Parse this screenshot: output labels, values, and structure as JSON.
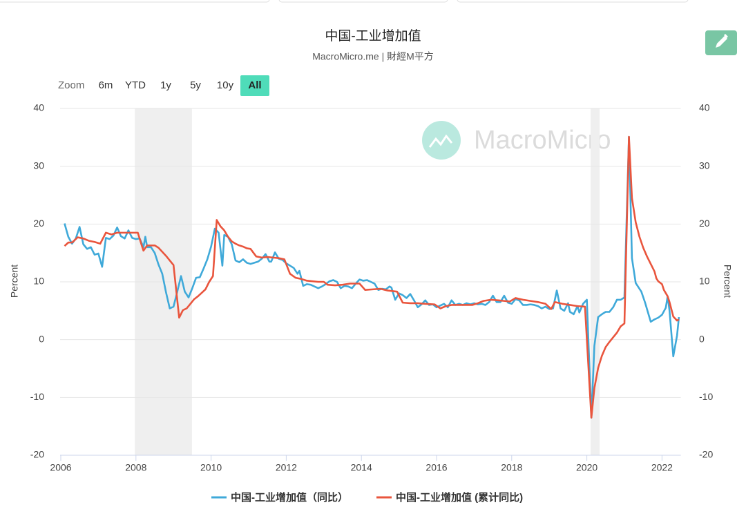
{
  "chart_data": {
    "type": "line",
    "title": "中国-工业增加值",
    "subtitle": "MacroMicro.me | 財經M平方",
    "watermark": "MacroMicro",
    "range_selector": {
      "label": "Zoom",
      "buttons": [
        "6m",
        "YTD",
        "1y",
        "5y",
        "10y",
        "All"
      ]
    },
    "y_label": "Percent",
    "y2_label": "Percent",
    "xlim": [
      2006,
      2022.5
    ],
    "xticks": [
      2006,
      2008,
      2010,
      2012,
      2014,
      2016,
      2018,
      2020,
      2022
    ],
    "ylim": [
      -20,
      40
    ],
    "yticks": [
      -20,
      -10,
      0,
      10,
      20,
      30,
      40
    ],
    "y2lim": [
      -20,
      40
    ],
    "y2ticks": [
      -20,
      -10,
      0,
      10,
      20,
      30,
      40
    ],
    "grid": true,
    "shaded_bands": [
      [
        2007.97,
        2009.49
      ],
      [
        2020.1,
        2020.34
      ]
    ],
    "series": [
      {
        "name": "中国-工业增加值（同比）",
        "color": "#3fa9d9",
        "x": [
          2006.1,
          2006.2,
          2006.3,
          2006.4,
          2006.5,
          2006.6,
          2006.7,
          2006.8,
          2006.9,
          2007.0,
          2007.1,
          2007.2,
          2007.3,
          2007.4,
          2007.5,
          2007.6,
          2007.7,
          2007.8,
          2007.9,
          2008.0,
          2008.1,
          2008.2,
          2008.25,
          2008.3,
          2008.4,
          2008.5,
          2008.6,
          2008.7,
          2008.8,
          2008.9,
          2009.0,
          2009.1,
          2009.2,
          2009.3,
          2009.4,
          2009.5,
          2009.6,
          2009.7,
          2009.8,
          2009.9,
          2010.0,
          2010.1,
          2010.2,
          2010.3,
          2010.35,
          2010.45,
          2010.55,
          2010.65,
          2010.75,
          2010.85,
          2010.95,
          2011.05,
          2011.15,
          2011.25,
          2011.35,
          2011.45,
          2011.55,
          2011.6,
          2011.7,
          2011.8,
          2011.9,
          2012.0,
          2012.1,
          2012.2,
          2012.3,
          2012.35,
          2012.45,
          2012.55,
          2012.65,
          2012.75,
          2012.85,
          2012.95,
          2013.05,
          2013.15,
          2013.25,
          2013.35,
          2013.45,
          2013.55,
          2013.65,
          2013.75,
          2013.85,
          2013.95,
          2014.05,
          2014.15,
          2014.25,
          2014.35,
          2014.45,
          2014.55,
          2014.65,
          2014.75,
          2014.8,
          2014.9,
          2015.0,
          2015.1,
          2015.2,
          2015.3,
          2015.4,
          2015.5,
          2015.6,
          2015.7,
          2015.8,
          2015.9,
          2016.0,
          2016.1,
          2016.2,
          2016.3,
          2016.4,
          2016.5,
          2016.6,
          2016.7,
          2016.8,
          2016.9,
          2017.0,
          2017.1,
          2017.2,
          2017.3,
          2017.4,
          2017.5,
          2017.6,
          2017.7,
          2017.8,
          2017.9,
          2018.0,
          2018.1,
          2018.2,
          2018.3,
          2018.4,
          2018.5,
          2018.6,
          2018.7,
          2018.8,
          2018.9,
          2019.0,
          2019.1,
          2019.2,
          2019.3,
          2019.4,
          2019.5,
          2019.55,
          2019.65,
          2019.75,
          2019.8,
          2019.9,
          2020.0,
          2020.12,
          2020.2,
          2020.3,
          2020.4,
          2020.5,
          2020.6,
          2020.7,
          2020.8,
          2020.9,
          2021.0,
          2021.12,
          2021.2,
          2021.3,
          2021.4,
          2021.45,
          2021.55,
          2021.6,
          2021.7,
          2021.8,
          2021.9,
          2022.0,
          2022.1,
          2022.15,
          2022.2,
          2022.3,
          2022.4,
          2022.45
        ],
        "values": [
          20.1,
          17.8,
          16.6,
          17.5,
          19.5,
          16.5,
          15.7,
          16.0,
          14.7,
          14.9,
          12.6,
          17.6,
          17.4,
          18.0,
          19.4,
          17.9,
          17.5,
          18.9,
          17.6,
          17.4,
          17.5,
          16.0,
          17.8,
          16.0,
          16.0,
          15.0,
          13.0,
          11.4,
          8.2,
          5.4,
          5.7,
          8.3,
          11.0,
          8.3,
          7.3,
          8.9,
          10.7,
          10.8,
          12.3,
          13.9,
          16.1,
          19.2,
          18.5,
          12.8,
          18.1,
          17.8,
          16.5,
          13.7,
          13.4,
          13.9,
          13.3,
          13.1,
          13.3,
          13.5,
          14.0,
          14.8,
          13.5,
          13.5,
          15.1,
          14.0,
          13.8,
          13.2,
          12.8,
          12.4,
          11.4,
          11.9,
          9.3,
          9.6,
          9.5,
          9.2,
          8.9,
          9.2,
          9.6,
          10.1,
          10.3,
          10.0,
          8.9,
          9.3,
          9.2,
          8.9,
          9.7,
          10.4,
          10.2,
          10.3,
          10.0,
          9.7,
          8.6,
          8.8,
          8.7,
          9.2,
          9.0,
          6.9,
          8.0,
          7.7,
          7.2,
          7.9,
          6.8,
          5.6,
          6.1,
          6.8,
          6.0,
          6.1,
          5.6,
          5.9,
          6.2,
          5.6,
          6.8,
          6.0,
          6.2,
          6.0,
          6.3,
          6.1,
          6.3,
          6.1,
          6.2,
          6.0,
          6.5,
          7.6,
          6.5,
          6.5,
          7.6,
          6.4,
          6.2,
          7.0,
          6.8,
          6.0,
          6.0,
          6.1,
          6.0,
          5.8,
          5.4,
          5.7,
          5.3,
          5.4,
          8.5,
          5.4,
          5.0,
          6.3,
          4.8,
          4.4,
          5.8,
          4.7,
          6.2,
          6.9,
          -13.5,
          -1.1,
          3.9,
          4.4,
          4.8,
          4.8,
          5.6,
          6.9,
          6.9,
          7.3,
          35.1,
          14.1,
          9.8,
          8.8,
          8.3,
          6.4,
          5.3,
          3.1,
          3.5,
          3.8,
          4.3,
          5.5,
          7.5,
          5.0,
          -2.9,
          0.7,
          3.9
        ]
      },
      {
        "name": "中国-工业增加值 (累计同比)",
        "color": "#e9553d",
        "axis": "y2",
        "x": [
          2006.1,
          2006.2,
          2006.3,
          2006.45,
          2006.6,
          2006.75,
          2006.9,
          2007.05,
          2007.2,
          2007.35,
          2007.5,
          2007.7,
          2007.9,
          2008.05,
          2008.15,
          2008.2,
          2008.3,
          2008.5,
          2008.6,
          2008.7,
          2008.8,
          2008.9,
          2009.0,
          2009.15,
          2009.25,
          2009.35,
          2009.45,
          2009.55,
          2009.65,
          2009.75,
          2009.85,
          2009.95,
          2010.05,
          2010.15,
          2010.25,
          2010.35,
          2010.45,
          2010.55,
          2010.65,
          2010.75,
          2010.85,
          2010.95,
          2011.05,
          2011.2,
          2011.35,
          2011.5,
          2011.65,
          2011.8,
          2011.95,
          2012.1,
          2012.25,
          2012.4,
          2012.55,
          2012.7,
          2012.85,
          2013.0,
          2013.1,
          2013.3,
          2013.5,
          2013.7,
          2013.95,
          2014.1,
          2014.3,
          2014.5,
          2014.7,
          2014.95,
          2015.1,
          2015.3,
          2015.5,
          2015.7,
          2015.95,
          2016.1,
          2016.25,
          2016.4,
          2016.6,
          2016.8,
          2016.95,
          2017.1,
          2017.25,
          2017.45,
          2017.65,
          2017.8,
          2017.95,
          2018.1,
          2018.3,
          2018.5,
          2018.7,
          2018.9,
          2019.05,
          2019.15,
          2019.35,
          2019.55,
          2019.75,
          2019.95,
          2020.12,
          2020.2,
          2020.3,
          2020.4,
          2020.5,
          2020.6,
          2020.7,
          2020.8,
          2020.9,
          2021.0,
          2021.12,
          2021.2,
          2021.3,
          2021.4,
          2021.5,
          2021.6,
          2021.7,
          2021.8,
          2021.85,
          2021.9,
          2022.0,
          2022.05,
          2022.15,
          2022.2,
          2022.3,
          2022.4,
          2022.45
        ],
        "values": [
          16.2,
          16.8,
          16.8,
          17.7,
          17.5,
          17.1,
          16.9,
          16.6,
          18.5,
          18.2,
          18.5,
          18.5,
          18.5,
          18.5,
          16.4,
          15.4,
          16.3,
          16.3,
          15.9,
          15.2,
          14.5,
          13.7,
          12.9,
          3.8,
          5.1,
          5.4,
          6.2,
          7.0,
          7.5,
          8.1,
          8.7,
          10.0,
          11.0,
          20.7,
          19.6,
          18.9,
          17.8,
          17.0,
          16.6,
          16.3,
          16.1,
          15.8,
          15.7,
          14.4,
          14.2,
          14.3,
          14.2,
          14.1,
          13.9,
          11.4,
          10.7,
          10.5,
          10.2,
          10.1,
          10.0,
          10.0,
          9.5,
          9.4,
          9.5,
          9.7,
          9.7,
          8.6,
          8.7,
          8.8,
          8.5,
          8.3,
          6.4,
          6.3,
          6.3,
          6.2,
          6.1,
          5.4,
          5.8,
          6.0,
          6.0,
          6.0,
          6.0,
          6.3,
          6.7,
          6.9,
          6.8,
          6.7,
          6.6,
          7.2,
          6.9,
          6.7,
          6.5,
          6.2,
          5.3,
          6.5,
          6.2,
          6.0,
          5.8,
          5.7,
          -13.5,
          -8.4,
          -4.9,
          -2.8,
          -1.3,
          -0.4,
          0.4,
          1.2,
          2.3,
          2.8,
          35.1,
          24.5,
          20.3,
          17.8,
          15.9,
          14.4,
          13.1,
          11.8,
          10.6,
          10.1,
          9.6,
          8.6,
          7.5,
          6.5,
          4.0,
          3.3,
          3.5
        ]
      }
    ]
  }
}
